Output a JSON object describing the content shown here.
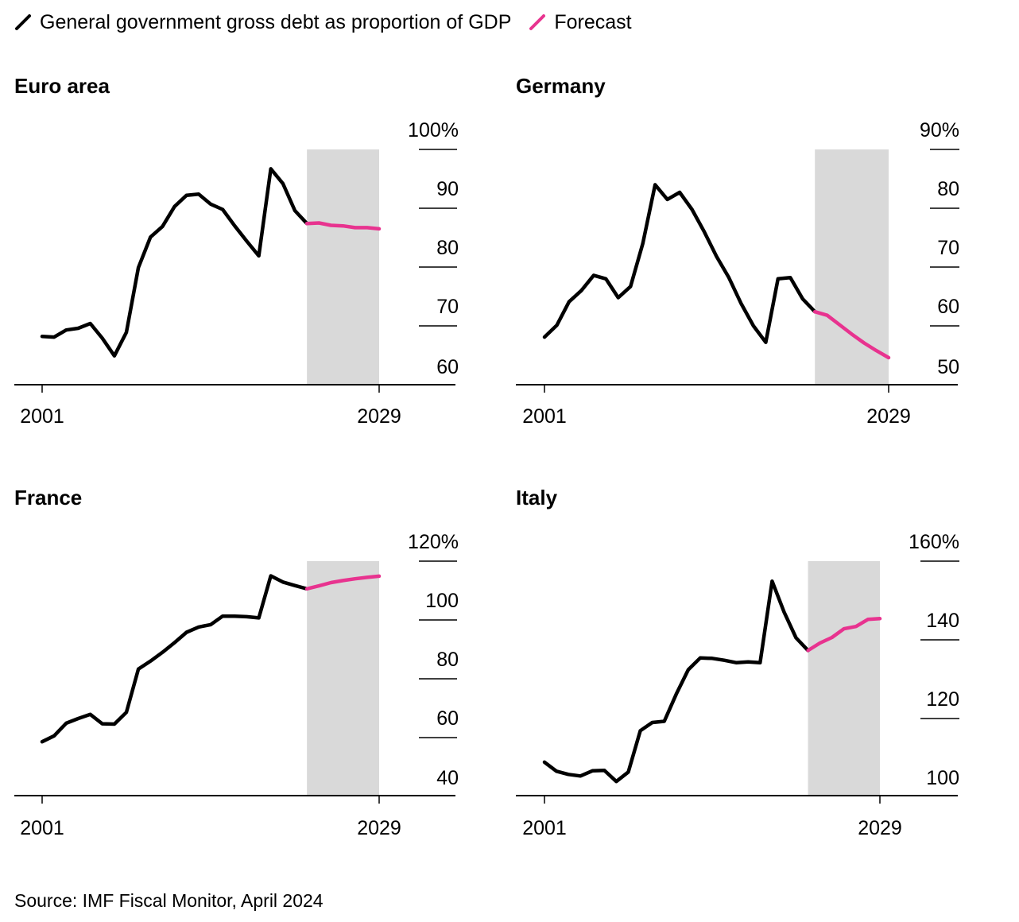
{
  "legend": {
    "actual_label": "General government gross debt as proportion of GDP",
    "forecast_label": "Forecast"
  },
  "source": "Source: IMF Fiscal Monitor, April 2024",
  "colors": {
    "actual": "#000000",
    "forecast": "#e8338f",
    "shade": "#d9d9d9",
    "axis": "#000000"
  },
  "chart_data": [
    {
      "type": "line",
      "title": "Euro area",
      "x_start_label": "2001",
      "x_end_label": "2029",
      "xlim": [
        2001,
        2029
      ],
      "ylim": [
        60,
        100
      ],
      "y_ticks": [
        60,
        70,
        80,
        90,
        100
      ],
      "y_tick_labels": [
        "60",
        "70",
        "80",
        "90",
        "100%"
      ],
      "forecast_start": 2023,
      "grid": false,
      "series": [
        {
          "kind": "actual",
          "x": [
            2001,
            2002,
            2003,
            2004,
            2005,
            2006,
            2007,
            2008,
            2009,
            2010,
            2011,
            2012,
            2013,
            2014,
            2015,
            2016,
            2017,
            2018,
            2019,
            2020,
            2021,
            2022,
            2023
          ],
          "y": [
            68.2,
            68.1,
            69.3,
            69.6,
            70.4,
            67.9,
            64.9,
            68.9,
            79.9,
            85.1,
            86.9,
            90.3,
            92.2,
            92.4,
            90.7,
            89.8,
            87.0,
            84.4,
            81.9,
            96.7,
            94.2,
            89.6,
            87.4
          ]
        },
        {
          "kind": "forecast",
          "x": [
            2023,
            2024,
            2025,
            2026,
            2027,
            2028,
            2029
          ],
          "y": [
            87.4,
            87.5,
            87.1,
            87.0,
            86.7,
            86.7,
            86.5
          ]
        }
      ]
    },
    {
      "type": "line",
      "title": "Germany",
      "x_start_label": "2001",
      "x_end_label": "2029",
      "xlim": [
        2001,
        2029
      ],
      "ylim": [
        50,
        90
      ],
      "y_ticks": [
        50,
        60,
        70,
        80,
        90
      ],
      "y_tick_labels": [
        "50",
        "60",
        "70",
        "80",
        "90%"
      ],
      "forecast_start": 2023,
      "grid": false,
      "series": [
        {
          "kind": "actual",
          "x": [
            2001,
            2002,
            2003,
            2004,
            2005,
            2006,
            2007,
            2008,
            2009,
            2010,
            2011,
            2012,
            2013,
            2014,
            2015,
            2016,
            2017,
            2018,
            2019,
            2020,
            2021,
            2022,
            2023
          ],
          "y": [
            58.1,
            60.1,
            64.1,
            66.0,
            68.6,
            68.0,
            64.8,
            66.7,
            74.0,
            84.0,
            81.5,
            82.7,
            79.8,
            76.0,
            71.8,
            68.2,
            63.8,
            60.0,
            57.2,
            68.0,
            68.2,
            64.6,
            62.4
          ]
        },
        {
          "kind": "forecast",
          "x": [
            2023,
            2024,
            2025,
            2026,
            2027,
            2028,
            2029
          ],
          "y": [
            62.4,
            61.8,
            60.2,
            58.6,
            57.1,
            55.8,
            54.6
          ]
        }
      ]
    },
    {
      "type": "line",
      "title": "France",
      "x_start_label": "2001",
      "x_end_label": "2029",
      "xlim": [
        2001,
        2029
      ],
      "ylim": [
        40,
        120
      ],
      "y_ticks": [
        40,
        60,
        80,
        100,
        120
      ],
      "y_tick_labels": [
        "40",
        "60",
        "80",
        "100",
        "120%"
      ],
      "forecast_start": 2023,
      "grid": false,
      "series": [
        {
          "kind": "actual",
          "x": [
            2001,
            2002,
            2003,
            2004,
            2005,
            2006,
            2007,
            2008,
            2009,
            2010,
            2011,
            2012,
            2013,
            2014,
            2015,
            2016,
            2017,
            2018,
            2019,
            2020,
            2021,
            2022,
            2023
          ],
          "y": [
            58.6,
            60.6,
            64.9,
            66.5,
            67.9,
            64.7,
            64.6,
            68.6,
            83.3,
            86.0,
            89.0,
            92.3,
            95.8,
            97.6,
            98.4,
            101.3,
            101.3,
            101.1,
            100.7,
            115.0,
            112.9,
            111.7,
            110.6
          ]
        },
        {
          "kind": "forecast",
          "x": [
            2023,
            2024,
            2025,
            2026,
            2027,
            2028,
            2029
          ],
          "y": [
            110.6,
            111.6,
            112.7,
            113.4,
            114.0,
            114.5,
            114.9
          ]
        }
      ]
    },
    {
      "type": "line",
      "title": "Italy",
      "x_start_label": "2001",
      "x_end_label": "2029",
      "xlim": [
        2001,
        2029
      ],
      "ylim": [
        100,
        160
      ],
      "y_ticks": [
        100,
        120,
        140,
        160
      ],
      "y_tick_labels": [
        "100",
        "120",
        "140",
        "160%"
      ],
      "forecast_start": 2023,
      "grid": false,
      "series": [
        {
          "kind": "actual",
          "x": [
            2001,
            2002,
            2003,
            2004,
            2005,
            2006,
            2007,
            2008,
            2009,
            2010,
            2011,
            2012,
            2013,
            2014,
            2015,
            2016,
            2017,
            2018,
            2019,
            2020,
            2021,
            2022,
            2023
          ],
          "y": [
            108.9,
            106.6,
            105.8,
            105.4,
            106.7,
            106.8,
            104.0,
            106.4,
            116.9,
            119.0,
            119.3,
            126.2,
            132.4,
            135.4,
            135.3,
            134.8,
            134.2,
            134.4,
            134.2,
            154.9,
            147.1,
            140.5,
            137.3
          ]
        },
        {
          "kind": "forecast",
          "x": [
            2023,
            2024,
            2025,
            2026,
            2027,
            2028,
            2029
          ],
          "y": [
            137.3,
            139.2,
            140.6,
            142.8,
            143.4,
            145.2,
            145.4
          ]
        }
      ]
    }
  ]
}
